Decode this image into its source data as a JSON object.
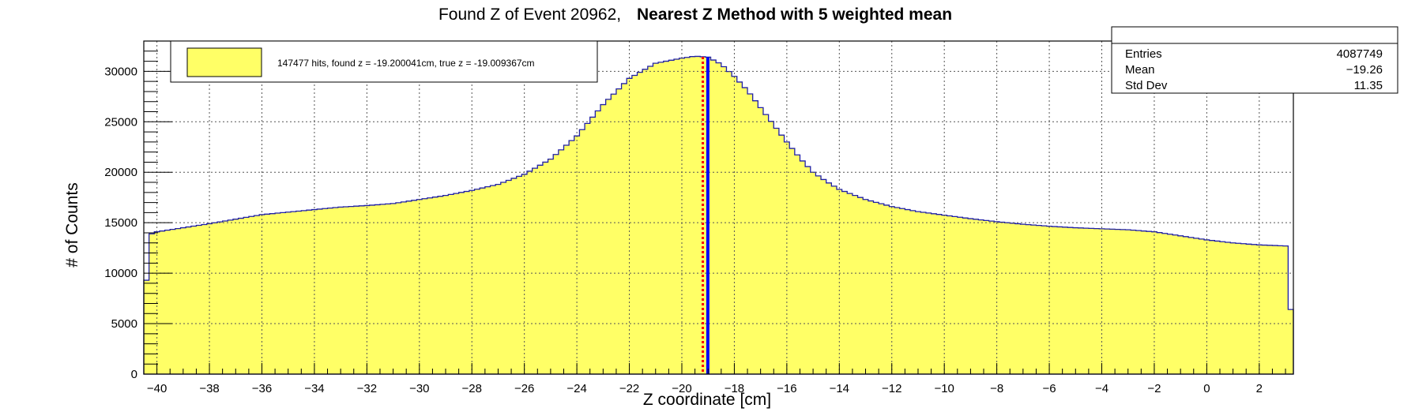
{
  "title": {
    "prefix": "Found Z of Event 20962,",
    "bold": "Nearest Z Method with 5 weighted mean"
  },
  "stats": {
    "rows": [
      {
        "label": "Entries",
        "value": "4087749"
      },
      {
        "label": "Mean",
        "value": "−19.26"
      },
      {
        "label": "Std Dev",
        "value": "11.35"
      }
    ]
  },
  "legend": {
    "text": "147477 hits, found z = -19.200041cm, true z = -19.009367cm",
    "swatch_color": "#ffff66"
  },
  "colors": {
    "fill": "#ffff66",
    "outline": "#1f1fa6",
    "true_line": "#0000ff",
    "found_line": "#ff0000",
    "grid": "#555555"
  },
  "chart_data": {
    "type": "bar",
    "title": "Found Z of Event 20962, Nearest Z Method with 5 weighted mean",
    "xlabel": "Z coordinate [cm]",
    "ylabel": "# of Counts",
    "xlim": [
      -40.5,
      3.3
    ],
    "ylim": [
      0,
      33000
    ],
    "grid": true,
    "legend_position": "top-left",
    "x_ticks": [
      -40,
      -38,
      -36,
      -34,
      -32,
      -30,
      -28,
      -26,
      -24,
      -22,
      -20,
      -18,
      -16,
      -14,
      -12,
      -10,
      -8,
      -6,
      -4,
      -2,
      0,
      2
    ],
    "y_ticks": [
      0,
      5000,
      10000,
      15000,
      20000,
      25000,
      30000
    ],
    "bin_width": 0.2,
    "found_z": -19.200041,
    "true_z": -19.009367,
    "profile_x": [
      -40.5,
      -40.2,
      -40.0,
      -38.0,
      -36.0,
      -34.0,
      -33.0,
      -32.0,
      -31.0,
      -30.0,
      -29.0,
      -28.0,
      -27.0,
      -26.0,
      -25.0,
      -24.0,
      -23.0,
      -22.0,
      -21.0,
      -20.0,
      -19.5,
      -19.0,
      -18.5,
      -18.0,
      -17.5,
      -17.0,
      -16.5,
      -16.0,
      -15.5,
      -15.0,
      -14.5,
      -14.0,
      -13.5,
      -13.0,
      -12.5,
      -12.0,
      -11.0,
      -10.0,
      -9.0,
      -8.0,
      -7.0,
      -6.0,
      -5.0,
      -4.0,
      -3.0,
      -2.0,
      -1.0,
      0.0,
      1.0,
      2.0,
      3.0,
      3.1,
      3.3
    ],
    "profile_y": [
      7000,
      13900,
      14100,
      14900,
      15800,
      16300,
      16550,
      16700,
      16900,
      17300,
      17700,
      18200,
      18800,
      19800,
      21300,
      23600,
      26700,
      29300,
      30800,
      31300,
      31500,
      31400,
      30700,
      29500,
      28100,
      26400,
      24700,
      23000,
      21400,
      20000,
      19100,
      18300,
      17800,
      17300,
      16950,
      16600,
      16100,
      15750,
      15400,
      15100,
      14850,
      14650,
      14500,
      14400,
      14300,
      14100,
      13700,
      13300,
      13000,
      12800,
      12700,
      6400,
      6400
    ]
  }
}
